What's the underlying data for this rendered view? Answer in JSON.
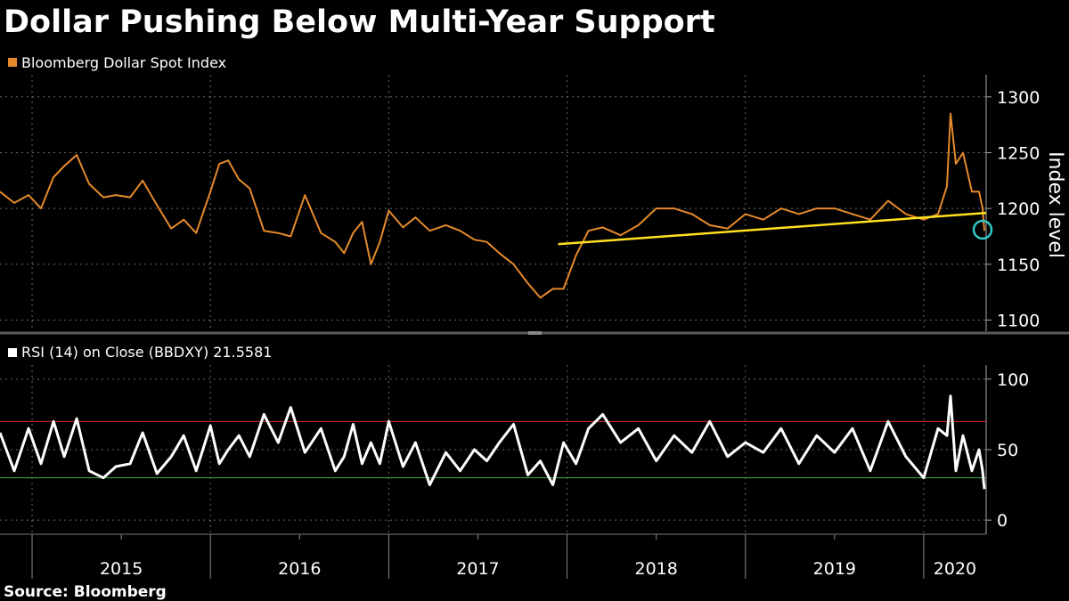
{
  "title": "Dollar Pushing Below Multi-Year Support",
  "source": "Source: Bloomberg",
  "colors": {
    "background": "#000000",
    "price_line": "#e58a2c",
    "trendline": "#ffe11f",
    "rsi_line": "#ffffff",
    "overbought_line": "#e0282b",
    "oversold_line": "#3cb043",
    "highlight_circle": "#2ec8c8",
    "grid": "#6a6a6a"
  },
  "chart_data": [
    {
      "type": "line",
      "legend": "Bloomberg Dollar Spot Index",
      "ylabel": "Index level",
      "ylim": [
        1090,
        1315
      ],
      "yticks": [
        1100,
        1150,
        1200,
        1250,
        1300
      ],
      "xlim": [
        2014.82,
        2020.35
      ],
      "x_tick_labels": [
        "2015",
        "2016",
        "2017",
        "2018",
        "2019",
        "2020"
      ],
      "series": [
        {
          "x": [
            2014.82,
            2014.9,
            2014.98,
            2015.05,
            2015.12,
            2015.18,
            2015.25,
            2015.32,
            2015.4,
            2015.47,
            2015.55,
            2015.62,
            2015.7,
            2015.78,
            2015.85,
            2015.92,
            2016.0,
            2016.05,
            2016.1,
            2016.16,
            2016.22,
            2016.3,
            2016.38,
            2016.45,
            2016.53,
            2016.62,
            2016.7,
            2016.75,
            2016.8,
            2016.85,
            2016.9,
            2016.95,
            2017.0,
            2017.08,
            2017.15,
            2017.23,
            2017.32,
            2017.4,
            2017.48,
            2017.55,
            2017.62,
            2017.7,
            2017.78,
            2017.85,
            2017.92,
            2017.98,
            2018.05,
            2018.12,
            2018.2,
            2018.3,
            2018.4,
            2018.5,
            2018.6,
            2018.7,
            2018.8,
            2018.9,
            2019.0,
            2019.1,
            2019.2,
            2019.3,
            2019.4,
            2019.5,
            2019.6,
            2019.7,
            2019.8,
            2019.9,
            2020.0,
            2020.08,
            2020.13,
            2020.15,
            2020.18,
            2020.22,
            2020.27,
            2020.31,
            2020.33,
            2020.34
          ],
          "y": [
            1215,
            1205,
            1212,
            1200,
            1228,
            1238,
            1248,
            1222,
            1210,
            1212,
            1210,
            1225,
            1203,
            1182,
            1190,
            1178,
            1215,
            1240,
            1243,
            1226,
            1218,
            1180,
            1178,
            1175,
            1212,
            1178,
            1170,
            1160,
            1178,
            1188,
            1150,
            1170,
            1198,
            1183,
            1192,
            1180,
            1185,
            1180,
            1172,
            1170,
            1160,
            1150,
            1133,
            1120,
            1128,
            1128,
            1158,
            1180,
            1183,
            1176,
            1185,
            1200,
            1200,
            1195,
            1185,
            1182,
            1195,
            1190,
            1200,
            1195,
            1200,
            1200,
            1195,
            1190,
            1207,
            1195,
            1190,
            1195,
            1220,
            1285,
            1240,
            1250,
            1215,
            1215,
            1200,
            1180
          ]
        }
      ],
      "trendline": {
        "x": [
          2017.95,
          2020.35
        ],
        "y": [
          1168,
          1196
        ]
      },
      "highlight": {
        "x": 2020.33,
        "y": 1181
      }
    },
    {
      "type": "line",
      "legend": "RSI (14)  on Close (BBDXY) 21.5581",
      "ylim": [
        -10,
        110
      ],
      "yticks": [
        0,
        50,
        100
      ],
      "reference_lines": [
        70,
        30
      ],
      "xlim": [
        2014.82,
        2020.35
      ],
      "series": [
        {
          "x": [
            2014.82,
            2014.9,
            2014.98,
            2015.05,
            2015.12,
            2015.18,
            2015.25,
            2015.32,
            2015.4,
            2015.47,
            2015.55,
            2015.62,
            2015.7,
            2015.78,
            2015.85,
            2015.92,
            2016.0,
            2016.05,
            2016.1,
            2016.16,
            2016.22,
            2016.3,
            2016.38,
            2016.45,
            2016.53,
            2016.62,
            2016.7,
            2016.75,
            2016.8,
            2016.85,
            2016.9,
            2016.95,
            2017.0,
            2017.08,
            2017.15,
            2017.23,
            2017.32,
            2017.4,
            2017.48,
            2017.55,
            2017.62,
            2017.7,
            2017.78,
            2017.85,
            2017.92,
            2017.98,
            2018.05,
            2018.12,
            2018.2,
            2018.3,
            2018.4,
            2018.5,
            2018.6,
            2018.7,
            2018.8,
            2018.9,
            2019.0,
            2019.1,
            2019.2,
            2019.3,
            2019.4,
            2019.5,
            2019.6,
            2019.7,
            2019.8,
            2019.9,
            2020.0,
            2020.08,
            2020.13,
            2020.15,
            2020.18,
            2020.22,
            2020.27,
            2020.31,
            2020.33,
            2020.34
          ],
          "y": [
            62,
            35,
            65,
            40,
            70,
            45,
            72,
            35,
            30,
            38,
            40,
            62,
            33,
            45,
            60,
            35,
            67,
            40,
            50,
            60,
            45,
            75,
            55,
            80,
            48,
            65,
            35,
            45,
            68,
            40,
            55,
            40,
            70,
            38,
            55,
            25,
            48,
            35,
            50,
            42,
            55,
            68,
            32,
            42,
            25,
            55,
            40,
            65,
            75,
            55,
            65,
            42,
            60,
            48,
            70,
            45,
            55,
            48,
            65,
            40,
            60,
            48,
            65,
            35,
            70,
            45,
            30,
            65,
            60,
            88,
            35,
            60,
            35,
            50,
            35,
            22
          ]
        }
      ]
    }
  ]
}
